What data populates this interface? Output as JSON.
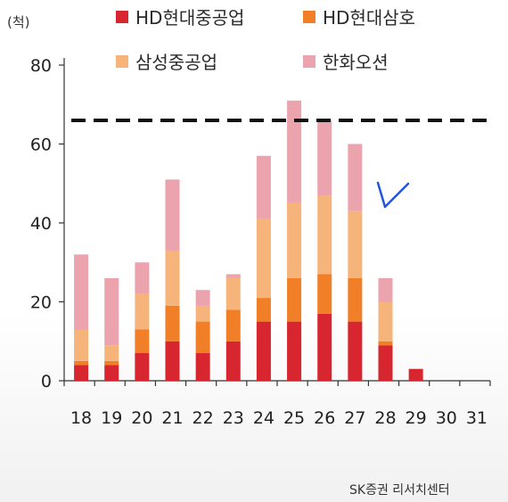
{
  "unit_label": "(척)",
  "source": "SK증권 리서치센터",
  "handwritten_mark": "V",
  "legend": [
    {
      "name": "HD현대중공업",
      "color": "#d7262f"
    },
    {
      "name": "HD현대삼호",
      "color": "#f07f27"
    },
    {
      "name": "삼성중공업",
      "color": "#f6b37a"
    },
    {
      "name": "한화오션",
      "color": "#eba3ae"
    }
  ],
  "chart_data": {
    "type": "bar",
    "stacked": true,
    "title": "",
    "xlabel": "",
    "ylabel": "(척)",
    "categories": [
      "18",
      "19",
      "20",
      "21",
      "22",
      "23",
      "24",
      "25",
      "26",
      "27",
      "28",
      "29",
      "30",
      "31"
    ],
    "ylim": [
      0,
      80
    ],
    "yticks": [
      0,
      20,
      40,
      60,
      80
    ],
    "reference_line": {
      "y": 66,
      "style": "dashed",
      "color": "#111111"
    },
    "series": [
      {
        "name": "HD현대중공업",
        "color": "#d7262f",
        "values": [
          4,
          4,
          7,
          10,
          7,
          10,
          15,
          15,
          17,
          15,
          9,
          3,
          0,
          0
        ]
      },
      {
        "name": "HD현대삼호",
        "color": "#f07f27",
        "values": [
          1,
          1,
          6,
          9,
          8,
          8,
          6,
          11,
          10,
          11,
          1,
          0,
          0,
          0
        ]
      },
      {
        "name": "삼성중공업",
        "color": "#f6b37a",
        "values": [
          8,
          4,
          9,
          14,
          4,
          8,
          20,
          19,
          20,
          17,
          10,
          0,
          0,
          0
        ]
      },
      {
        "name": "한화오션",
        "color": "#eba3ae",
        "values": [
          19,
          17,
          8,
          18,
          4,
          1,
          16,
          26,
          19,
          17,
          6,
          0,
          0,
          0
        ]
      }
    ]
  }
}
